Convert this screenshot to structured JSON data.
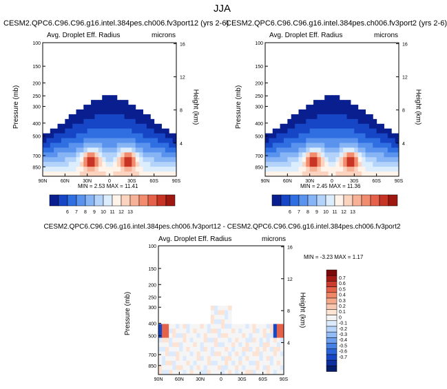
{
  "page": {
    "title": "JJA"
  },
  "palettes": {
    "abs": [
      "#0a1f8f",
      "#1646c6",
      "#2f6fe2",
      "#5a93ee",
      "#86b4f4",
      "#b3d3fa",
      "#dceefe",
      "#fff3ea",
      "#fbd3bf",
      "#f7b196",
      "#f28c6e",
      "#e5614a",
      "#c83424",
      "#9e1710"
    ],
    "diff": [
      "#041e6b",
      "#0b2f9f",
      "#1747c4",
      "#2a63d8",
      "#4780e4",
      "#6d9fee",
      "#93bcf5",
      "#b9d6fa",
      "#dceafd",
      "#f5f5f5",
      "#fde3d4",
      "#f9c8b0",
      "#f4a98b",
      "#ee8868",
      "#e4614a",
      "#c93c2e",
      "#a21a16",
      "#7a0a0a"
    ]
  },
  "chart_data": [
    {
      "type": "heatmap",
      "title": "CESM2.QPC6.C96.C96.g16.intel.384pes.ch006.fv3port12 (yrs 2-6)",
      "subtitle_left": "Avg. Droplet Eff. Radius",
      "subtitle_right": "microns",
      "ylabel": "Pressure (mb)",
      "y2label": "Height (km)",
      "xticks": [
        "90N",
        "60N",
        "30N",
        "0",
        "30S",
        "60S",
        "90S"
      ],
      "yticks": [
        100,
        150,
        200,
        250,
        300,
        400,
        500,
        700,
        850
      ],
      "y2ticks": [
        16,
        12,
        8,
        4
      ],
      "ylim": [
        1000,
        100
      ],
      "min_label": "MIN =   2.53  MAX =  11.41",
      "colorbar_labels": [
        "6",
        "7",
        "8",
        "9",
        "10",
        "11",
        "12",
        "13"
      ],
      "min": 2.53,
      "max": 11.41
    },
    {
      "type": "heatmap",
      "title": "CESM2.QPC6.C96.C96.g16.intel.384pes.ch006.fv3port2 (yrs 2-6)",
      "subtitle_left": "Avg. Droplet Eff. Radius",
      "subtitle_right": "microns",
      "ylabel": "Pressure (mb)",
      "y2label": "Height (km)",
      "xticks": [
        "90N",
        "60N",
        "30N",
        "0",
        "30S",
        "60S",
        "90S"
      ],
      "yticks": [
        100,
        150,
        200,
        250,
        300,
        400,
        500,
        700,
        850
      ],
      "y2ticks": [
        16,
        12,
        8,
        4
      ],
      "ylim": [
        1000,
        100
      ],
      "min_label": "MIN =   2.45  MAX =  11.36",
      "colorbar_labels": [
        "6",
        "7",
        "8",
        "9",
        "10",
        "11",
        "12",
        "13"
      ],
      "min": 2.45,
      "max": 11.36
    },
    {
      "type": "heatmap",
      "title": "CESM2.QPC6.C96.C96.g16.intel.384pes.ch006.fv3port12 - CESM2.QPC6.C96.C96.g16.intel.384pes.ch006.fv3port2",
      "subtitle_left": "Avg. Droplet Eff. Radius",
      "subtitle_right": "microns",
      "ylabel": "Pressure (mb)",
      "y2label": "Height (km)",
      "xticks": [
        "90N",
        "60N",
        "30N",
        "0",
        "30S",
        "60S",
        "90S"
      ],
      "yticks": [
        100,
        150,
        200,
        250,
        300,
        400,
        500,
        700,
        850
      ],
      "y2ticks": [
        16,
        12,
        8,
        4
      ],
      "ylim": [
        1000,
        100
      ],
      "min_label": "MIN = -3.23  MAX =   1.17",
      "colorbar_labels": [
        "0.7",
        "0.6",
        "0.5",
        "0.4",
        "0.3",
        "0.2",
        "0.1",
        "0",
        "-0.1",
        "-0.2",
        "-0.3",
        "-0.4",
        "-0.5",
        "-0.6",
        "-0.7"
      ],
      "min": -3.23,
      "max": 1.17
    }
  ]
}
